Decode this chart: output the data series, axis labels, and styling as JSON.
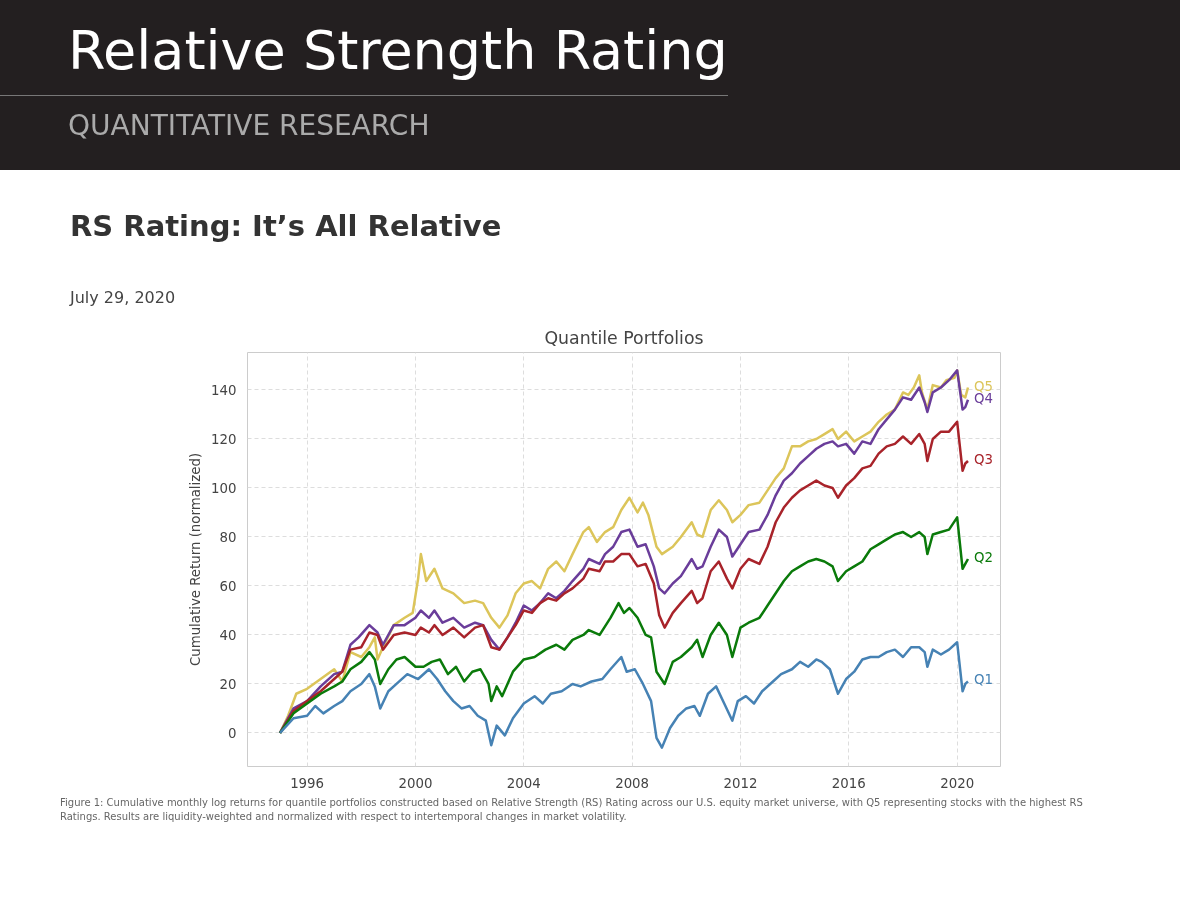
{
  "chart_data": {
    "type": "line",
    "title": "Quantile Portfolios",
    "ylabel": "Cumulative Return (normalized)",
    "annotations": [
      "Relative Strength Rating",
      "QUANTITATIVE RESEARCH",
      "RS Rating: It’s All Relative",
      "July 29, 2020",
      "Figure 1: Cumulative monthly log returns for quantile portfolios constructed based on Relative Strength (RS) Rating across our U.S. equity market universe, with Q5 representing stocks with the highest RS Ratings. Results are liquidity-weighted and normalized with respect to intertemporal changes in market volatility."
    ],
    "xlim": [
      1993.8,
      2021.6
    ],
    "xticks": [
      1996,
      2000,
      2004,
      2008,
      2012,
      2016,
      2020
    ],
    "ylim": [
      -13.7,
      155.3
    ],
    "yticks": [
      0,
      20,
      40,
      60,
      80,
      100,
      120,
      140
    ],
    "grid": true,
    "series": [
      {
        "name": "Q5",
        "color": "#dcc55a",
        "x": [
          1995.0,
          1995.3,
          1995.6,
          1996.0,
          1996.5,
          1997.0,
          1997.3,
          1997.6,
          1998.0,
          1998.3,
          1998.5,
          1998.6,
          1998.8,
          1999.2,
          1999.6,
          1999.9,
          2000.1,
          2000.2,
          2000.4,
          2000.7,
          2001.0,
          2001.4,
          2001.8,
          2002.2,
          2002.5,
          2002.8,
          2003.1,
          2003.4,
          2003.7,
          2004.0,
          2004.3,
          2004.6,
          2004.9,
          2005.2,
          2005.5,
          2005.8,
          2006.2,
          2006.4,
          2006.7,
          2007.0,
          2007.3,
          2007.6,
          2007.9,
          2008.2,
          2008.4,
          2008.6,
          2008.9,
          2009.1,
          2009.5,
          2009.8,
          2010.2,
          2010.4,
          2010.6,
          2010.9,
          2011.2,
          2011.5,
          2011.7,
          2012.0,
          2012.3,
          2012.7,
          2013.0,
          2013.3,
          2013.6,
          2013.9,
          2014.2,
          2014.5,
          2014.8,
          2015.1,
          2015.4,
          2015.6,
          2015.9,
          2016.2,
          2016.5,
          2016.8,
          2017.1,
          2017.4,
          2017.7,
          2018.0,
          2018.2,
          2018.4,
          2018.6,
          2018.7,
          2018.9,
          2019.1,
          2019.4,
          2019.6,
          2019.9,
          2020.0,
          2020.15,
          2020.3,
          2020.4
        ],
        "values": [
          0,
          7,
          16,
          18,
          22,
          26,
          21,
          33,
          31,
          35,
          39,
          30,
          35,
          44,
          47,
          49,
          63,
          73,
          62,
          67,
          59,
          57,
          53,
          54,
          53,
          47,
          43,
          48,
          57,
          61,
          62,
          59,
          67,
          70,
          66,
          73,
          82,
          84,
          78,
          82,
          84,
          91,
          96,
          90,
          94,
          89,
          76,
          73,
          76,
          80,
          86,
          81,
          80,
          91,
          95,
          91,
          86,
          89,
          93,
          94,
          99,
          104,
          108,
          117,
          117,
          119,
          120,
          122,
          124,
          120,
          123,
          119,
          121,
          123,
          127,
          130,
          132,
          139,
          138,
          141,
          146,
          139,
          132,
          142,
          141,
          144,
          145,
          148,
          138,
          137,
          141
        ]
      },
      {
        "name": "Q4",
        "color": "#6a3d9a",
        "x": [
          1995.0,
          1995.5,
          1996.0,
          1996.5,
          1997.0,
          1997.3,
          1997.6,
          1997.9,
          1998.3,
          1998.6,
          1998.8,
          1999.2,
          1999.6,
          2000.0,
          2000.2,
          2000.5,
          2000.7,
          2001.0,
          2001.4,
          2001.8,
          2002.2,
          2002.5,
          2002.8,
          2003.1,
          2003.4,
          2003.7,
          2004.0,
          2004.3,
          2004.6,
          2004.9,
          2005.2,
          2005.5,
          2005.8,
          2006.2,
          2006.4,
          2006.8,
          2007.0,
          2007.3,
          2007.6,
          2007.9,
          2008.2,
          2008.5,
          2008.8,
          2009.0,
          2009.2,
          2009.5,
          2009.8,
          2010.2,
          2010.4,
          2010.6,
          2010.9,
          2011.2,
          2011.5,
          2011.7,
          2012.0,
          2012.3,
          2012.7,
          2013.0,
          2013.3,
          2013.6,
          2013.9,
          2014.2,
          2014.5,
          2014.8,
          2015.1,
          2015.4,
          2015.6,
          2015.9,
          2016.2,
          2016.5,
          2016.8,
          2017.1,
          2017.4,
          2017.7,
          2018.0,
          2018.3,
          2018.6,
          2018.8,
          2018.9,
          2019.1,
          2019.4,
          2019.7,
          2020.0,
          2020.2,
          2020.3,
          2020.4
        ],
        "values": [
          0,
          10,
          13,
          19,
          24,
          25,
          36,
          39,
          44,
          41,
          36,
          44,
          44,
          47,
          50,
          47,
          50,
          45,
          47,
          43,
          45,
          44,
          38,
          34,
          39,
          45,
          52,
          50,
          53,
          57,
          55,
          58,
          62,
          67,
          71,
          69,
          73,
          76,
          82,
          83,
          76,
          77,
          68,
          59,
          57,
          61,
          64,
          71,
          67,
          68,
          76,
          83,
          80,
          72,
          77,
          82,
          83,
          89,
          97,
          103,
          106,
          110,
          113,
          116,
          118,
          119,
          117,
          118,
          114,
          119,
          118,
          124,
          128,
          132,
          137,
          136,
          141,
          135,
          131,
          139,
          141,
          144,
          148,
          132,
          133,
          136
        ]
      },
      {
        "name": "Q3",
        "color": "#a8232a",
        "x": [
          1995.0,
          1995.5,
          1996.0,
          1996.5,
          1997.0,
          1997.3,
          1997.6,
          1998.0,
          1998.3,
          1998.6,
          1998.8,
          1999.2,
          1999.6,
          2000.0,
          2000.2,
          2000.5,
          2000.7,
          2001.0,
          2001.4,
          2001.8,
          2002.2,
          2002.5,
          2002.8,
          2003.1,
          2003.4,
          2003.7,
          2004.0,
          2004.3,
          2004.6,
          2004.9,
          2005.2,
          2005.5,
          2005.8,
          2006.2,
          2006.4,
          2006.8,
          2007.0,
          2007.3,
          2007.6,
          2007.9,
          2008.2,
          2008.5,
          2008.8,
          2009.0,
          2009.2,
          2009.5,
          2009.8,
          2010.2,
          2010.4,
          2010.6,
          2010.9,
          2011.2,
          2011.5,
          2011.7,
          2012.0,
          2012.3,
          2012.7,
          2013.0,
          2013.3,
          2013.6,
          2013.9,
          2014.2,
          2014.5,
          2014.8,
          2015.1,
          2015.4,
          2015.6,
          2015.9,
          2016.2,
          2016.5,
          2016.8,
          2017.1,
          2017.4,
          2017.7,
          2018.0,
          2018.3,
          2018.6,
          2018.8,
          2018.9,
          2019.1,
          2019.4,
          2019.7,
          2020.0,
          2020.2,
          2020.3,
          2020.4
        ],
        "values": [
          0,
          9,
          13,
          17,
          22,
          25,
          34,
          35,
          41,
          40,
          34,
          40,
          41,
          40,
          43,
          41,
          44,
          40,
          43,
          39,
          43,
          44,
          35,
          34,
          39,
          44,
          50,
          49,
          53,
          55,
          54,
          57,
          59,
          63,
          67,
          66,
          70,
          70,
          73,
          73,
          68,
          69,
          61,
          48,
          43,
          49,
          53,
          58,
          53,
          55,
          66,
          70,
          63,
          59,
          67,
          71,
          69,
          76,
          86,
          92,
          96,
          99,
          101,
          103,
          101,
          100,
          96,
          101,
          104,
          108,
          109,
          114,
          117,
          118,
          121,
          118,
          122,
          118,
          111,
          120,
          123,
          123,
          127,
          107,
          110,
          111
        ]
      },
      {
        "name": "Q2",
        "color": "#0a7a0a",
        "x": [
          1995.0,
          1995.5,
          1996.0,
          1996.5,
          1997.0,
          1997.3,
          1997.6,
          1998.0,
          1998.3,
          1998.5,
          1998.7,
          1999.0,
          1999.3,
          1999.6,
          2000.0,
          2000.3,
          2000.6,
          2000.9,
          2001.2,
          2001.5,
          2001.8,
          2002.1,
          2002.4,
          2002.7,
          2002.8,
          2003.0,
          2003.2,
          2003.6,
          2004.0,
          2004.4,
          2004.8,
          2005.2,
          2005.5,
          2005.8,
          2006.2,
          2006.4,
          2006.8,
          2007.2,
          2007.5,
          2007.7,
          2007.9,
          2008.2,
          2008.5,
          2008.7,
          2008.9,
          2009.2,
          2009.5,
          2009.8,
          2010.2,
          2010.4,
          2010.6,
          2010.9,
          2011.2,
          2011.5,
          2011.7,
          2012.0,
          2012.3,
          2012.7,
          2013.0,
          2013.3,
          2013.6,
          2013.9,
          2014.2,
          2014.5,
          2014.8,
          2015.1,
          2015.4,
          2015.6,
          2015.9,
          2016.2,
          2016.5,
          2016.8,
          2017.1,
          2017.4,
          2017.7,
          2018.0,
          2018.3,
          2018.6,
          2018.8,
          2018.9,
          2019.1,
          2019.4,
          2019.7,
          2020.0,
          2020.2,
          2020.3,
          2020.4
        ],
        "values": [
          0,
          8,
          12,
          16,
          19,
          21,
          26,
          29,
          33,
          30,
          20,
          26,
          30,
          31,
          27,
          27,
          29,
          30,
          24,
          27,
          21,
          25,
          26,
          20,
          13,
          19,
          15,
          25,
          30,
          31,
          34,
          36,
          34,
          38,
          40,
          42,
          40,
          47,
          53,
          49,
          51,
          47,
          40,
          39,
          25,
          20,
          29,
          31,
          35,
          38,
          31,
          40,
          45,
          40,
          31,
          43,
          45,
          47,
          52,
          57,
          62,
          66,
          68,
          70,
          71,
          70,
          68,
          62,
          66,
          68,
          70,
          75,
          77,
          79,
          81,
          82,
          80,
          82,
          80,
          73,
          81,
          82,
          83,
          88,
          67,
          69,
          71
        ]
      },
      {
        "name": "Q1",
        "color": "#4682b4",
        "x": [
          1995.0,
          1995.5,
          1996.0,
          1996.3,
          1996.6,
          1997.0,
          1997.3,
          1997.6,
          1998.0,
          1998.3,
          1998.5,
          1998.7,
          1999.0,
          1999.3,
          1999.7,
          2000.1,
          2000.5,
          2000.8,
          2001.1,
          2001.4,
          2001.7,
          2002.0,
          2002.3,
          2002.6,
          2002.8,
          2003.0,
          2003.3,
          2003.6,
          2004.0,
          2004.4,
          2004.7,
          2005.0,
          2005.4,
          2005.8,
          2006.1,
          2006.5,
          2006.9,
          2007.2,
          2007.6,
          2007.8,
          2008.1,
          2008.4,
          2008.7,
          2008.9,
          2009.1,
          2009.4,
          2009.7,
          2010.0,
          2010.3,
          2010.5,
          2010.8,
          2011.1,
          2011.4,
          2011.7,
          2011.9,
          2012.2,
          2012.5,
          2012.8,
          2013.2,
          2013.5,
          2013.9,
          2014.2,
          2014.5,
          2014.8,
          2015.0,
          2015.3,
          2015.6,
          2015.9,
          2016.2,
          2016.5,
          2016.8,
          2017.1,
          2017.4,
          2017.7,
          2018.0,
          2018.3,
          2018.6,
          2018.8,
          2018.9,
          2019.1,
          2019.4,
          2019.7,
          2020.0,
          2020.2,
          2020.3,
          2020.4
        ],
        "values": [
          0,
          6,
          7,
          11,
          8,
          11,
          13,
          17,
          20,
          24,
          19,
          10,
          17,
          20,
          24,
          22,
          26,
          22,
          17,
          13,
          10,
          11,
          7,
          5,
          -5,
          3,
          -1,
          6,
          12,
          15,
          12,
          16,
          17,
          20,
          19,
          21,
          22,
          26,
          31,
          25,
          26,
          20,
          13,
          -2,
          -6,
          2,
          7,
          10,
          11,
          7,
          16,
          19,
          12,
          5,
          13,
          15,
          12,
          17,
          21,
          24,
          26,
          29,
          27,
          30,
          29,
          26,
          16,
          22,
          25,
          30,
          31,
          31,
          33,
          34,
          31,
          35,
          35,
          33,
          27,
          34,
          32,
          34,
          37,
          17,
          20,
          21
        ]
      }
    ]
  }
}
